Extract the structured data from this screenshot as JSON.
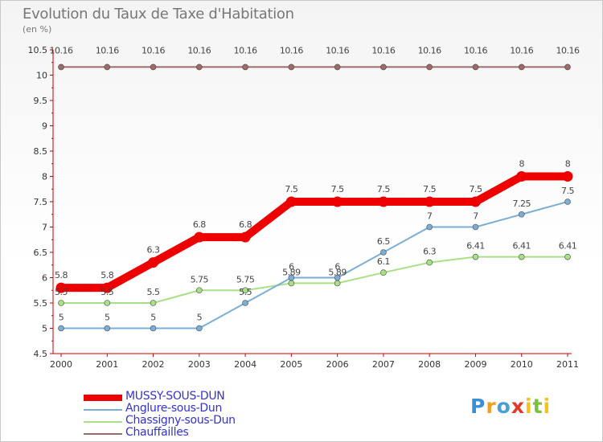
{
  "header": {
    "title": "Evolution du Taux de Taxe d'Habitation",
    "subtitle": "(en %)"
  },
  "logo": {
    "text": "Proxiti",
    "letters": [
      {
        "ch": "P",
        "color": "#3b8fd8"
      },
      {
        "ch": "r",
        "color": "#f0a020"
      },
      {
        "ch": "o",
        "color": "#4a9ed8"
      },
      {
        "ch": "x",
        "color": "#e23a2a"
      },
      {
        "ch": "i",
        "color": "#f4c21a"
      },
      {
        "ch": "t",
        "color": "#7bc043"
      },
      {
        "ch": "i",
        "color": "#f4c21a"
      }
    ]
  },
  "chart_data": {
    "type": "line",
    "title": "Evolution du Taux de Taxe d'Habitation",
    "subtitle": "(en %)",
    "xlabel": "",
    "ylabel": "",
    "x": [
      "2000",
      "2001",
      "2002",
      "2003",
      "2004",
      "2005",
      "2006",
      "2007",
      "2008",
      "2009",
      "2010",
      "2011"
    ],
    "ylim": [
      4.5,
      10.5
    ],
    "yticks": [
      "4.5",
      "5",
      "5.5",
      "6",
      "6.5",
      "7",
      "7.5",
      "8",
      "8.5",
      "9",
      "9.5",
      "10",
      "10.5"
    ],
    "grid": false,
    "legend_position": "bottom-left",
    "series": [
      {
        "name": "MUSSY-SOUS-DUN",
        "color": "#ee0000",
        "legend_color": "#3333cc",
        "thick": true,
        "values": [
          5.8,
          5.8,
          6.3,
          6.8,
          6.8,
          7.5,
          7.5,
          7.5,
          7.5,
          7.5,
          8,
          8
        ],
        "labels": [
          "5.8",
          "5.8",
          "6.3",
          "6.8",
          "6.8",
          "7.5",
          "7.5",
          "7.5",
          "7.5",
          "7.5",
          "8",
          "8"
        ]
      },
      {
        "name": "Anglure-sous-Dun",
        "color": "#7aaed6",
        "legend_color": "#3333cc",
        "thick": false,
        "values": [
          5,
          5,
          5,
          5,
          5.5,
          6,
          6,
          6.5,
          7,
          7,
          7.25,
          7.5
        ],
        "labels": [
          "5",
          "5",
          "5",
          "5",
          "5.5",
          "6",
          "6",
          "6.5",
          "7",
          "7",
          "7.25",
          "7.5"
        ]
      },
      {
        "name": "Chassigny-sous-Dun",
        "color": "#a8e088",
        "legend_color": "#3333cc",
        "thick": false,
        "values": [
          5.5,
          5.5,
          5.5,
          5.75,
          5.75,
          5.89,
          5.89,
          6.1,
          6.3,
          6.41,
          6.41,
          6.41
        ],
        "labels": [
          "5.5",
          "5.5",
          "5.5",
          "5.75",
          "5.75",
          "5.89",
          "5.89",
          "6.1",
          "6.3",
          "6.41",
          "6.41",
          "6.41"
        ]
      },
      {
        "name": "Chauffailles",
        "color": "#9e6a6a",
        "legend_color": "#3333cc",
        "thick": false,
        "values": [
          10.16,
          10.16,
          10.16,
          10.16,
          10.16,
          10.16,
          10.16,
          10.16,
          10.16,
          10.16,
          10.16,
          10.16
        ],
        "labels": [
          "10.16",
          "10.16",
          "10.16",
          "10.16",
          "10.16",
          "10.16",
          "10.16",
          "10.16",
          "10.16",
          "10.16",
          "10.16",
          "10.16"
        ]
      }
    ]
  }
}
